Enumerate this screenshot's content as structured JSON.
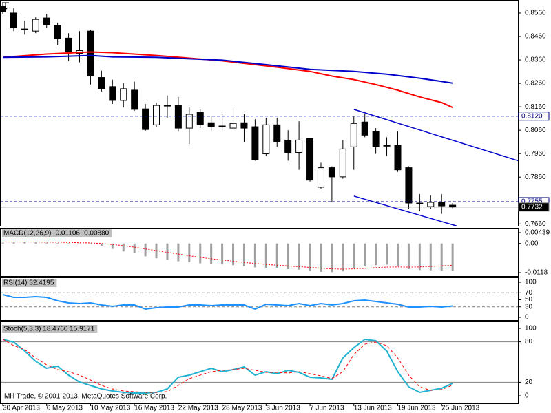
{
  "chart_data": [
    {
      "type": "candlestick",
      "open": [
        0.859,
        0.856,
        0.8492,
        0.8483,
        0.8539,
        0.8507,
        0.8453,
        0.8388,
        0.8483,
        0.8285,
        0.8246,
        0.8187,
        0.8231,
        0.8151,
        0.8083,
        0.8166,
        0.8166,
        0.8069,
        0.8137,
        0.8092,
        0.8078,
        0.8069,
        0.8092,
        0.8075,
        0.7959,
        0.8083,
        0.8018,
        0.7965,
        0.8024,
        0.7817,
        0.79,
        0.7861,
        0.7989,
        0.8095,
        0.8054,
        0.7995,
        0.7995,
        0.79,
        0.7749,
        0.7734,
        0.7752,
        0.774
      ],
      "high": [
        0.8601,
        0.8581,
        0.8527,
        0.8542,
        0.8557,
        0.8519,
        0.8474,
        0.8483,
        0.8489,
        0.8314,
        0.8276,
        0.8261,
        0.8267,
        0.8172,
        0.8178,
        0.8208,
        0.8202,
        0.8157,
        0.8149,
        0.8122,
        0.8128,
        0.8157,
        0.8128,
        0.8107,
        0.8113,
        0.8113,
        0.806,
        0.8098,
        0.8024,
        0.7921,
        0.7906,
        0.8018,
        0.8119,
        0.8128,
        0.8069,
        0.803,
        0.8054,
        0.7906,
        0.7787,
        0.7782,
        0.7787,
        0.7749
      ],
      "low": [
        0.8557,
        0.8483,
        0.8468,
        0.8474,
        0.8498,
        0.8424,
        0.8356,
        0.835,
        0.8255,
        0.8225,
        0.8172,
        0.8157,
        0.8143,
        0.8057,
        0.8075,
        0.8113,
        0.8054,
        0.8001,
        0.8069,
        0.8054,
        0.8054,
        0.8054,
        0.8009,
        0.793,
        0.795,
        0.7989,
        0.793,
        0.7891,
        0.7841,
        0.7811,
        0.7752,
        0.7853,
        0.7891,
        0.803,
        0.7959,
        0.795,
        0.7882,
        0.7723,
        0.7714,
        0.7723,
        0.7703,
        0.7727
      ],
      "close": [
        0.8565,
        0.8498,
        0.8489,
        0.8533,
        0.851,
        0.845,
        0.8394,
        0.84,
        0.8291,
        0.8237,
        0.8187,
        0.8237,
        0.8149,
        0.8063,
        0.8166,
        0.8163,
        0.8069,
        0.8128,
        0.8083,
        0.8075,
        0.8077,
        0.8089,
        0.8069,
        0.7935,
        0.8083,
        0.8009,
        0.7965,
        0.8018,
        0.7847,
        0.79,
        0.7861,
        0.798,
        0.8089,
        0.8039,
        0.7989,
        0.7992,
        0.7891,
        0.7749,
        0.7746,
        0.7752,
        0.7737,
        0.7732
      ],
      "up_color": "#ffffff",
      "down_color": "#000000",
      "ylim": [
        0.7655,
        0.8604
      ],
      "yticks": [
        {
          "value": 0.856,
          "label": "0.8560"
        },
        {
          "value": 0.846,
          "label": "0.8460"
        },
        {
          "value": 0.836,
          "label": "0.8360"
        },
        {
          "value": 0.826,
          "label": "0.8260"
        },
        {
          "value": 0.816,
          "label": "0.8160"
        },
        {
          "value": 0.806,
          "label": "0.8060"
        },
        {
          "value": 0.796,
          "label": "0.7960"
        },
        {
          "value": 0.786,
          "label": "0.7860"
        },
        {
          "value": 0.766,
          "label": "0.7660"
        }
      ],
      "series": [
        {
          "color": "#ff0000",
          "x": [
            0,
            4,
            8,
            10,
            14,
            20,
            25,
            28,
            30,
            32,
            34,
            36,
            38,
            40,
            41
          ],
          "values": [
            0.8371,
            0.8385,
            0.8394,
            0.8391,
            0.8379,
            0.8356,
            0.8329,
            0.8311,
            0.8291,
            0.8276,
            0.8255,
            0.8231,
            0.8202,
            0.8178,
            0.8157
          ]
        },
        {
          "color": "#0000cc",
          "x": [
            0,
            4,
            8,
            10,
            14,
            20,
            25,
            28,
            32,
            35,
            38,
            41
          ],
          "values": [
            0.8371,
            0.8373,
            0.8379,
            0.8373,
            0.8371,
            0.8359,
            0.8335,
            0.832,
            0.8311,
            0.8299,
            0.8282,
            0.8261
          ]
        }
      ],
      "trendlines": [
        {
          "color": "#0000cc",
          "x": [
            32,
            46.96
          ],
          "values": [
            0.8149,
            0.793
          ]
        },
        {
          "color": "#0000cc",
          "x": [
            32,
            41.4
          ],
          "values": [
            0.7779,
            0.7651
          ]
        }
      ],
      "price_lines": [
        {
          "value": 0.812,
          "label": "0.8120",
          "style": "dashed",
          "color": "#000080"
        },
        {
          "value": 0.7755,
          "label": "0.7755",
          "style": "dashed",
          "color": "#000080"
        },
        {
          "value": 0.7732,
          "label": "0.7732",
          "style": "solid",
          "color": "#808080"
        }
      ]
    },
    {
      "type": "macd",
      "title": "MACD(12,26,9) -0.01106 -0.00880",
      "ylim": [
        -0.0118,
        0.00439
      ],
      "yticks": [
        0.00439,
        {
          "value": 0,
          "label": "0.00"
        },
        -0.0118
      ],
      "series": [
        {
          "color": "#a0a0a0",
          "style": "bars",
          "values": [
            0.0003,
            0.0004,
            0.0005,
            0.0004,
            0.0003,
            0.0002,
            0.0001,
            0.0,
            -0.0003,
            -0.0012,
            -0.0022,
            -0.0032,
            -0.004,
            -0.0052,
            -0.006,
            -0.0066,
            -0.0072,
            -0.0076,
            -0.008,
            -0.0083,
            -0.0085,
            -0.0088,
            -0.0092,
            -0.0097,
            -0.0099,
            -0.0101,
            -0.0104,
            -0.0106,
            -0.0112,
            -0.0115,
            -0.0116,
            -0.0113,
            -0.0101,
            -0.0093,
            -0.0088,
            -0.0086,
            -0.0092,
            -0.0104,
            -0.0108,
            -0.0109,
            -0.0111,
            -0.01106
          ]
        },
        {
          "color": "#ff0000",
          "style": "dotted",
          "values": [
            0.0006,
            0.0006,
            0.0006,
            0.0006,
            0.0005,
            0.0005,
            0.0004,
            0.0003,
            0.0002,
            0.0,
            -0.0004,
            -0.0009,
            -0.0015,
            -0.0022,
            -0.0029,
            -0.0036,
            -0.0043,
            -0.005,
            -0.0056,
            -0.0062,
            -0.0067,
            -0.0072,
            -0.0077,
            -0.0081,
            -0.0085,
            -0.0088,
            -0.0091,
            -0.0094,
            -0.0097,
            -0.01,
            -0.0103,
            -0.0104,
            -0.0103,
            -0.0101,
            -0.0098,
            -0.0096,
            -0.0095,
            -0.0096,
            -0.0095,
            -0.0093,
            -0.0091,
            -0.0088
          ]
        }
      ]
    },
    {
      "type": "line",
      "title": "RSI(14) 32.4195",
      "ylim": [
        0,
        100
      ],
      "yticks": [
        100,
        70,
        50,
        30,
        0
      ],
      "levels": [
        70,
        30
      ],
      "level_style": "dashed",
      "series": [
        {
          "color": "#1e90ff",
          "style": "solid",
          "values": [
            64.7,
            56.9,
            56.9,
            58.8,
            56.9,
            47.1,
            41.2,
            39.2,
            41.2,
            35.3,
            31.4,
            35.3,
            35.3,
            23.5,
            27.5,
            29.4,
            29.4,
            35.3,
            35.3,
            33.3,
            35.3,
            35.3,
            35.3,
            23.5,
            37.3,
            35.3,
            33.3,
            39.2,
            33.3,
            39.2,
            35.3,
            39.2,
            47.1,
            49.0,
            45.1,
            41.2,
            37.3,
            29.4,
            29.4,
            31.4,
            29.4,
            32.4195
          ]
        }
      ]
    },
    {
      "type": "line",
      "title": "Stoch(5,3,3) 18.4760 15.9171",
      "ylim": [
        0,
        100
      ],
      "yticks": [
        100,
        80,
        20,
        0
      ],
      "levels": [
        80,
        20
      ],
      "level_style": "solid",
      "categories": [
        "30 Apr 2013",
        null,
        null,
        null,
        "6 May 2013",
        null,
        null,
        null,
        "10 May 2013",
        null,
        null,
        null,
        "16 May 2013",
        null,
        null,
        null,
        "22 May 2013",
        null,
        null,
        null,
        "28 May 2013",
        null,
        null,
        null,
        "3 Jun 2013",
        null,
        null,
        null,
        "7 Jun 2013",
        null,
        null,
        null,
        "13 Jun 2013",
        null,
        null,
        null,
        "19 Jun 2013",
        null,
        null,
        null,
        "25 Jun 2013",
        null
      ],
      "note": "Mill Trade, © 2001-2013, MetaQuotes Software Corp.",
      "series": [
        {
          "color": "#20b2d0",
          "style": "solid",
          "values": [
            83.7,
            79.6,
            66.3,
            51.0,
            40.8,
            43.9,
            30.6,
            20.4,
            15.3,
            10.2,
            7.1,
            5.1,
            4.1,
            4.1,
            5.1,
            10.2,
            27.6,
            30.6,
            35.7,
            40.8,
            35.7,
            38.8,
            42.9,
            30.6,
            35.7,
            32.7,
            37.8,
            34.7,
            27.6,
            26.5,
            24.5,
            56.1,
            71.4,
            83.7,
            81.6,
            66.3,
            35.7,
            13.3,
            5.1,
            8.2,
            11.2,
            18.476
          ]
        },
        {
          "color": "#ff0000",
          "style": "dashed",
          "values": [
            83.7,
            74.5,
            68.4,
            56.1,
            45.9,
            38.8,
            35.7,
            30.6,
            23.5,
            15.3,
            10.2,
            7.1,
            6.1,
            5.1,
            5.1,
            6.1,
            15.3,
            25.5,
            30.6,
            35.7,
            37.8,
            38.8,
            40.8,
            37.8,
            34.7,
            34.7,
            33.7,
            35.7,
            32.7,
            29.6,
            25.5,
            35.7,
            61.2,
            76.5,
            79.6,
            74.5,
            56.1,
            30.6,
            13.3,
            8.2,
            9.2,
            15.9171
          ]
        }
      ]
    }
  ]
}
